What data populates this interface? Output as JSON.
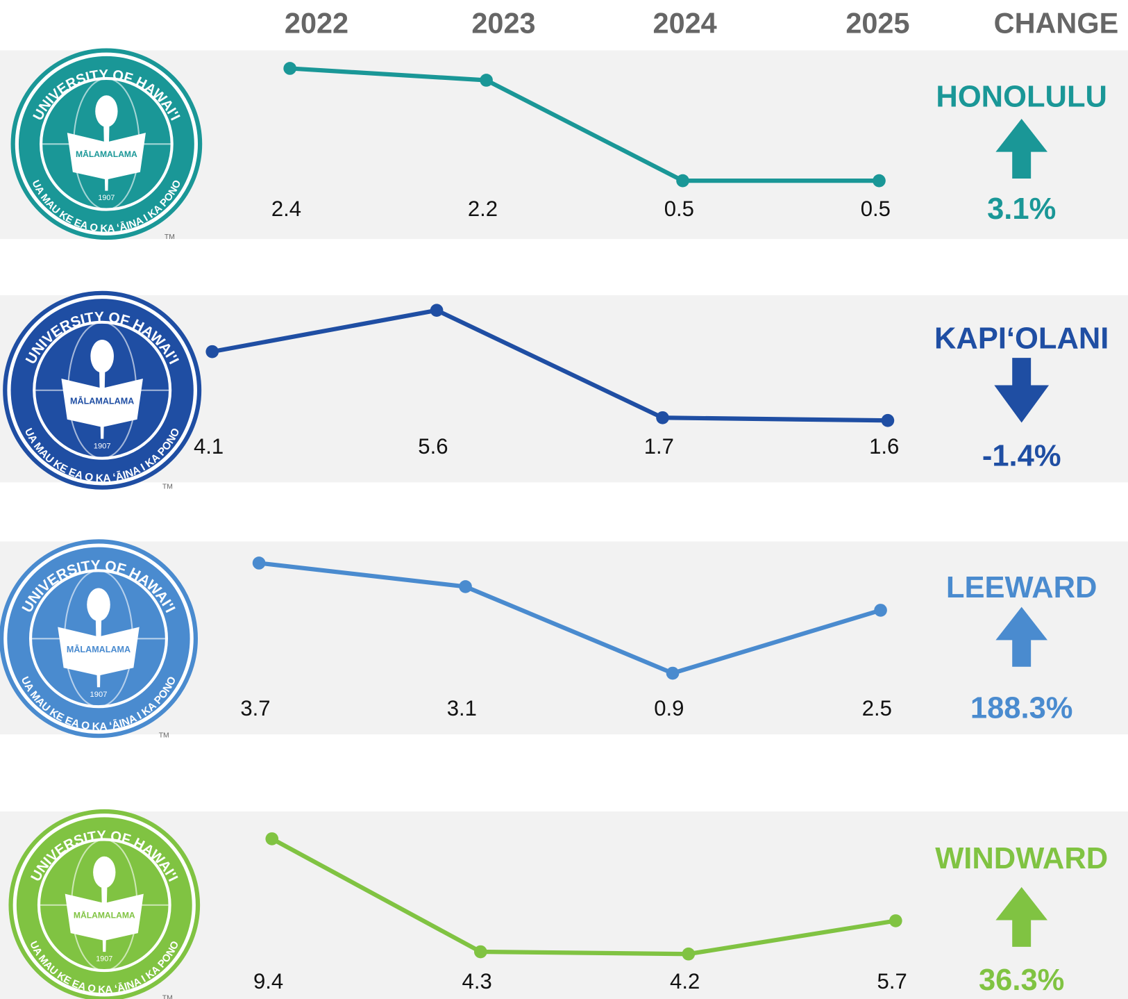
{
  "header": {
    "columns": [
      "2022",
      "2023",
      "2024",
      "2025",
      "CHANGE"
    ]
  },
  "seal": {
    "ring_top": "UNIVERSITY OF HAWAI'I",
    "ring_bottom": "UA MAU KE EA O KA ʻĀINA I KA PONO",
    "motto": "MĀLAMALAMA",
    "year": "1907",
    "mark": "TM"
  },
  "chart_data": [
    {
      "type": "line",
      "title": "HONOLULU",
      "color": "#1a9797",
      "values": [
        2.4,
        2.2,
        0.5,
        0.5
      ],
      "ylim": [
        0.5,
        2.4
      ],
      "change": {
        "value": 3.1,
        "label": "3.1%"
      }
    },
    {
      "type": "line",
      "title": "KAPIʻOLANI",
      "color": "#1f4ea3",
      "values": [
        4.1,
        5.6,
        1.7,
        1.6
      ],
      "ylim": [
        1.6,
        5.6
      ],
      "change": {
        "value": -1.4,
        "label": "-1.4%"
      }
    },
    {
      "type": "line",
      "title": "LEEWARD",
      "color": "#4a8bcf",
      "values": [
        3.7,
        3.1,
        0.9,
        2.5
      ],
      "ylim": [
        0.9,
        3.7
      ],
      "change": {
        "value": 188.3,
        "label": "188.3%"
      }
    },
    {
      "type": "line",
      "title": "WINDWARD",
      "color": "#80c342",
      "values": [
        9.4,
        4.3,
        4.2,
        5.7
      ],
      "ylim": [
        4.2,
        9.4
      ],
      "change": {
        "value": 36.3,
        "label": "36.3%"
      }
    }
  ]
}
